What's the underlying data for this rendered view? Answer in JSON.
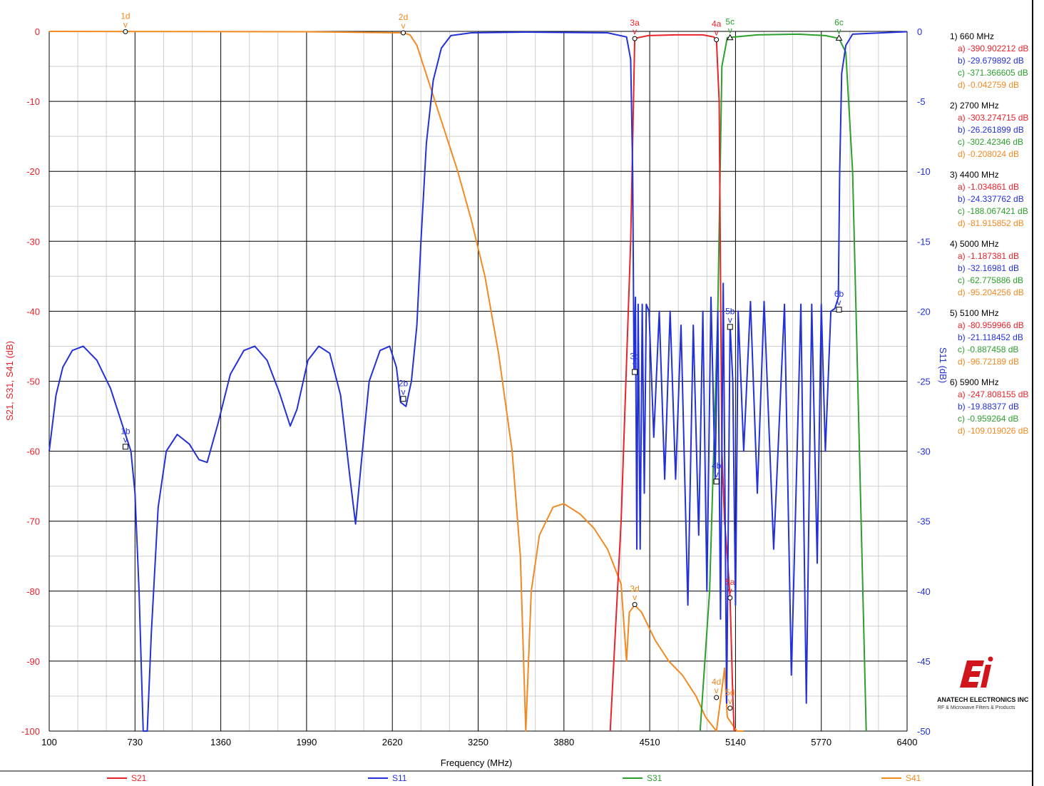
{
  "chart_data": {
    "type": "line",
    "xlabel": "Frequency (MHz)",
    "ylabel_left": "S21, S31, S41 (dB)",
    "ylabel_right": "S11 (dB)",
    "xlim": [
      100,
      6400
    ],
    "ylim_left": [
      -100,
      0
    ],
    "ylim_right": [
      -50,
      0
    ],
    "x_ticks": [
      100,
      730,
      1360,
      1990,
      2620,
      3250,
      3880,
      4510,
      5140,
      5770,
      6400
    ],
    "y_ticks_left": [
      0,
      -10,
      -20,
      -30,
      -40,
      -50,
      -60,
      -70,
      -80,
      -90,
      -100
    ],
    "y_ticks_right": [
      0,
      -5,
      -10,
      -15,
      -20,
      -25,
      -30,
      -35,
      -40,
      -45,
      -50
    ],
    "grid": true,
    "legend_position": "bottom",
    "series": [
      {
        "name": "S21",
        "color": "#e8232a",
        "axis": "left",
        "points": [
          [
            4220,
            -100
          ],
          [
            4300,
            -70
          ],
          [
            4370,
            -30
          ],
          [
            4400,
            -1.0
          ],
          [
            4500,
            -0.6
          ],
          [
            4700,
            -0.5
          ],
          [
            4900,
            -0.5
          ],
          [
            4980,
            -0.8
          ],
          [
            5000,
            -1.2
          ],
          [
            5020,
            -10
          ],
          [
            5040,
            -60
          ],
          [
            5060,
            -70
          ],
          [
            5080,
            -75
          ],
          [
            5100,
            -81
          ],
          [
            5120,
            -95
          ],
          [
            5130,
            -100
          ]
        ]
      },
      {
        "name": "S11",
        "color": "#2331d8",
        "axis": "right",
        "points": [
          [
            100,
            -30
          ],
          [
            150,
            -26
          ],
          [
            200,
            -24
          ],
          [
            270,
            -22.8
          ],
          [
            350,
            -22.5
          ],
          [
            450,
            -23.5
          ],
          [
            550,
            -25.5
          ],
          [
            650,
            -28.5
          ],
          [
            700,
            -30
          ],
          [
            730,
            -33
          ],
          [
            760,
            -40
          ],
          [
            790,
            -50
          ],
          [
            820,
            -50
          ],
          [
            850,
            -43
          ],
          [
            900,
            -34
          ],
          [
            960,
            -30
          ],
          [
            1040,
            -28.8
          ],
          [
            1130,
            -29.5
          ],
          [
            1200,
            -30.6
          ],
          [
            1260,
            -30.8
          ],
          [
            1340,
            -28
          ],
          [
            1430,
            -24.5
          ],
          [
            1530,
            -22.8
          ],
          [
            1610,
            -22.5
          ],
          [
            1700,
            -23.5
          ],
          [
            1790,
            -25.8
          ],
          [
            1870,
            -28.2
          ],
          [
            1920,
            -27
          ],
          [
            2000,
            -23.5
          ],
          [
            2080,
            -22.5
          ],
          [
            2160,
            -23
          ],
          [
            2240,
            -26
          ],
          [
            2310,
            -32
          ],
          [
            2350,
            -35.2
          ],
          [
            2390,
            -31
          ],
          [
            2450,
            -25
          ],
          [
            2530,
            -22.8
          ],
          [
            2600,
            -22.5
          ],
          [
            2650,
            -24
          ],
          [
            2680,
            -26.5
          ],
          [
            2720,
            -26.8
          ],
          [
            2760,
            -25
          ],
          [
            2800,
            -21
          ],
          [
            2830,
            -15
          ],
          [
            2870,
            -8
          ],
          [
            2920,
            -3.5
          ],
          [
            2980,
            -1.2
          ],
          [
            3050,
            -0.3
          ],
          [
            3200,
            -0.1
          ],
          [
            3600,
            -0.05
          ],
          [
            4200,
            -0.1
          ],
          [
            4340,
            -0.4
          ],
          [
            4370,
            -2
          ],
          [
            4385,
            -10
          ],
          [
            4395,
            -24.4
          ],
          [
            4405,
            -19
          ],
          [
            4415,
            -37
          ],
          [
            4425,
            -19.5
          ],
          [
            4440,
            -37
          ],
          [
            4455,
            -19.5
          ],
          [
            4470,
            -33
          ],
          [
            4485,
            -19.5
          ],
          [
            4505,
            -20
          ],
          [
            4540,
            -29
          ],
          [
            4580,
            -20
          ],
          [
            4620,
            -32
          ],
          [
            4660,
            -20
          ],
          [
            4700,
            -32
          ],
          [
            4740,
            -21
          ],
          [
            4790,
            -41
          ],
          [
            4830,
            -21
          ],
          [
            4870,
            -36
          ],
          [
            4900,
            -20
          ],
          [
            4930,
            -40
          ],
          [
            4960,
            -19
          ],
          [
            4990,
            -32
          ],
          [
            5010,
            -20
          ],
          [
            5030,
            -42
          ],
          [
            5050,
            -18
          ],
          [
            5075,
            -48
          ],
          [
            5100,
            -21
          ],
          [
            5120,
            -25
          ],
          [
            5140,
            -41
          ],
          [
            5160,
            -20
          ],
          [
            5200,
            -30
          ],
          [
            5250,
            -19.3
          ],
          [
            5300,
            -33
          ],
          [
            5350,
            -19.3
          ],
          [
            5420,
            -37
          ],
          [
            5500,
            -19.5
          ],
          [
            5550,
            -46
          ],
          [
            5620,
            -19.5
          ],
          [
            5660,
            -48
          ],
          [
            5700,
            -19.5
          ],
          [
            5740,
            -38
          ],
          [
            5770,
            -19.5
          ],
          [
            5800,
            -30
          ],
          [
            5840,
            -20
          ],
          [
            5870,
            -19.8
          ],
          [
            5895,
            -19
          ],
          [
            5905,
            -10
          ],
          [
            5920,
            -3
          ],
          [
            5950,
            -1
          ],
          [
            6000,
            -0.2
          ],
          [
            6400,
            -0.02
          ]
        ]
      },
      {
        "name": "S31",
        "color": "#2ca02c",
        "axis": "left",
        "points": [
          [
            4880,
            -100
          ],
          [
            4950,
            -80
          ],
          [
            5010,
            -40
          ],
          [
            5040,
            -5
          ],
          [
            5080,
            -0.9
          ],
          [
            5300,
            -0.5
          ],
          [
            5600,
            -0.4
          ],
          [
            5800,
            -0.6
          ],
          [
            5900,
            -1.0
          ],
          [
            5950,
            -3
          ],
          [
            6000,
            -20
          ],
          [
            6050,
            -60
          ],
          [
            6100,
            -100
          ]
        ]
      },
      {
        "name": "S41",
        "color": "#f28a22",
        "axis": "left",
        "points": [
          [
            100,
            0
          ],
          [
            2000,
            -0.05
          ],
          [
            2700,
            -0.2
          ],
          [
            2750,
            -0.5
          ],
          [
            2800,
            -2
          ],
          [
            2900,
            -8
          ],
          [
            3000,
            -14
          ],
          [
            3100,
            -20
          ],
          [
            3200,
            -27
          ],
          [
            3300,
            -35
          ],
          [
            3400,
            -46
          ],
          [
            3500,
            -60
          ],
          [
            3560,
            -75
          ],
          [
            3600,
            -100
          ],
          [
            3640,
            -80
          ],
          [
            3700,
            -72
          ],
          [
            3800,
            -68
          ],
          [
            3880,
            -67.5
          ],
          [
            4000,
            -69
          ],
          [
            4100,
            -71
          ],
          [
            4200,
            -74
          ],
          [
            4300,
            -79
          ],
          [
            4340,
            -90
          ],
          [
            4360,
            -83
          ],
          [
            4400,
            -82
          ],
          [
            4450,
            -83
          ],
          [
            4550,
            -87
          ],
          [
            4650,
            -90
          ],
          [
            4750,
            -92
          ],
          [
            4850,
            -95
          ],
          [
            4920,
            -98
          ],
          [
            5000,
            -100
          ],
          [
            5060,
            -91
          ],
          [
            5080,
            -98
          ],
          [
            5150,
            -100
          ],
          [
            5200,
            -100
          ]
        ]
      }
    ],
    "markers": [
      {
        "label": "1d",
        "x": 660,
        "y": -0.042759,
        "series": "S41"
      },
      {
        "label": "1b",
        "x": 660,
        "y": -29.679892,
        "series": "S11"
      },
      {
        "label": "2d",
        "x": 2700,
        "y": -0.208024,
        "series": "S41"
      },
      {
        "label": "2b",
        "x": 2700,
        "y": -26.261899,
        "series": "S11"
      },
      {
        "label": "3a",
        "x": 4400,
        "y": -1.034861,
        "series": "S21"
      },
      {
        "label": "3b",
        "x": 4400,
        "y": -24.337762,
        "series": "S11"
      },
      {
        "label": "3d",
        "x": 4400,
        "y": -81.915852,
        "series": "S41"
      },
      {
        "label": "4a",
        "x": 5000,
        "y": -1.187381,
        "series": "S21"
      },
      {
        "label": "4b",
        "x": 5000,
        "y": -32.16981,
        "series": "S11"
      },
      {
        "label": "4d",
        "x": 5000,
        "y": -95.204256,
        "series": "S41"
      },
      {
        "label": "5c",
        "x": 5100,
        "y": -0.887458,
        "series": "S31"
      },
      {
        "label": "5b",
        "x": 5100,
        "y": -21.118452,
        "series": "S11"
      },
      {
        "label": "5a",
        "x": 5100,
        "y": -80.959966,
        "series": "S21"
      },
      {
        "label": "5d",
        "x": 5100,
        "y": -96.72189,
        "series": "S41"
      },
      {
        "label": "6c",
        "x": 5900,
        "y": -0.959264,
        "series": "S31"
      },
      {
        "label": "6b",
        "x": 5900,
        "y": -19.88377,
        "series": "S11"
      }
    ],
    "readouts": [
      {
        "header": "1) 660 MHz",
        "lines": [
          "a) -390.902212 dB",
          "b) -29.679892 dB",
          "c) -371.366605 dB",
          "d) -0.042759 dB"
        ]
      },
      {
        "header": "2) 2700 MHz",
        "lines": [
          "a) -303.274715 dB",
          "b) -26.261899 dB",
          "c) -302.42346 dB",
          "d) -0.208024 dB"
        ]
      },
      {
        "header": "3) 4400 MHz",
        "lines": [
          "a) -1.034861 dB",
          "b) -24.337762 dB",
          "c) -188.067421 dB",
          "d) -81.915852 dB"
        ]
      },
      {
        "header": "4) 5000 MHz",
        "lines": [
          "a) -1.187381 dB",
          "b) -32.16981 dB",
          "c) -62.775886 dB",
          "d) -95.204256 dB"
        ]
      },
      {
        "header": "5) 5100 MHz",
        "lines": [
          "a) -80.959966 dB",
          "b) -21.118452 dB",
          "c) -0.887458 dB",
          "d) -96.72189 dB"
        ]
      },
      {
        "header": "6) 5900 MHz",
        "lines": [
          "a) -247.808155 dB",
          "b) -19.88377 dB",
          "c) -0.959264 dB",
          "d) -109.019026 dB"
        ]
      }
    ]
  },
  "logo": {
    "company": "ANATECH ELECTRONICS INC",
    "tagline": "RF & Microwave Filters & Products"
  },
  "colors": {
    "a": "#e8232a",
    "b": "#2331d8",
    "c": "#2ca02c",
    "d": "#f28a22"
  }
}
